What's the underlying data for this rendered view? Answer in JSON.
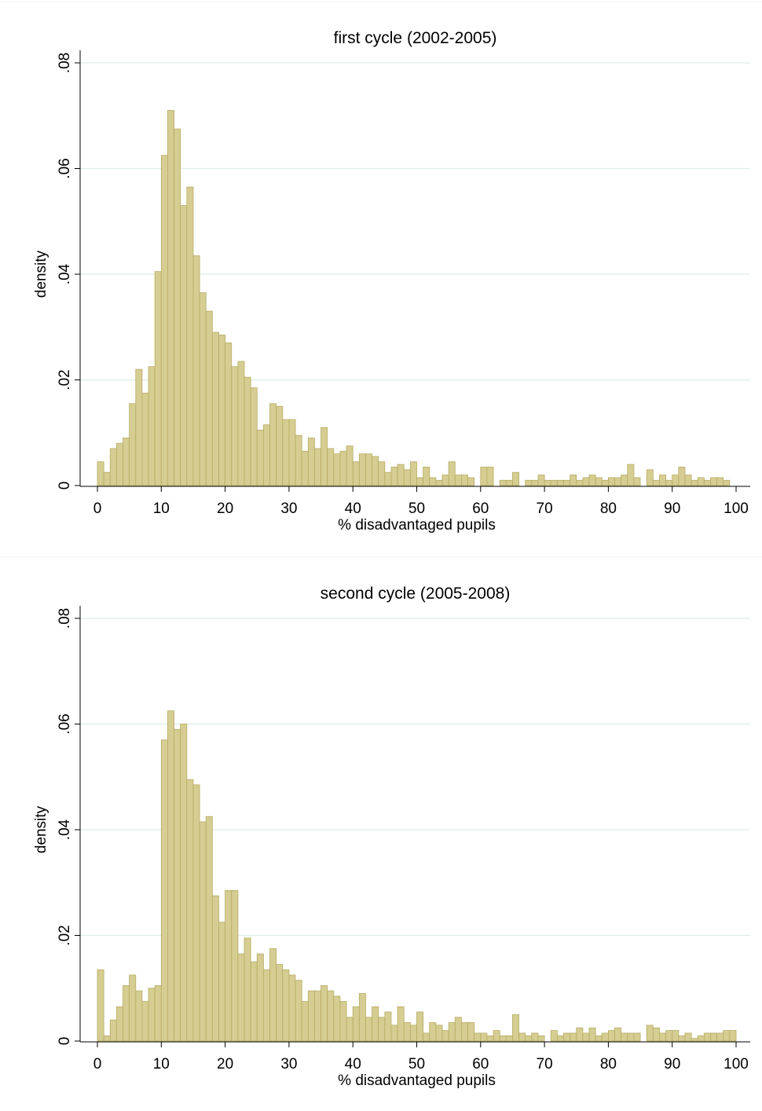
{
  "colors": {
    "bar_fill": "#d6cd92",
    "bar_stroke": "#b6ab62",
    "grid": "#e0ece9",
    "axis": "#000000",
    "background": "#ffffff"
  },
  "chart_data": [
    {
      "type": "bar",
      "title": "first cycle (2002-2005)",
      "xlabel": "% disadvantaged pupils",
      "ylabel": "density",
      "xlim": [
        0,
        100
      ],
      "ylim": [
        0,
        0.08
      ],
      "xticks": [
        0,
        10,
        20,
        30,
        40,
        50,
        60,
        70,
        80,
        90,
        100
      ],
      "xtick_labels": [
        "0",
        "10",
        "20",
        "30",
        "40",
        "50",
        "60",
        "70",
        "80",
        "90",
        "100"
      ],
      "yticks": [
        0,
        0.02,
        0.04,
        0.06,
        0.08
      ],
      "ytick_labels": [
        "0",
        ".02",
        ".04",
        ".06",
        ".08"
      ],
      "grid": true,
      "bin_width": 1,
      "bin_starts": [
        0,
        1,
        2,
        3,
        4,
        5,
        6,
        7,
        8,
        9,
        10,
        11,
        12,
        13,
        14,
        15,
        16,
        17,
        18,
        19,
        20,
        21,
        22,
        23,
        24,
        25,
        26,
        27,
        28,
        29,
        30,
        31,
        32,
        33,
        34,
        35,
        36,
        37,
        38,
        39,
        40,
        41,
        42,
        43,
        44,
        45,
        46,
        47,
        48,
        49,
        50,
        51,
        52,
        53,
        54,
        55,
        56,
        57,
        58,
        59,
        60,
        61,
        62,
        63,
        64,
        65,
        66,
        67,
        68,
        69,
        70,
        71,
        72,
        73,
        74,
        75,
        76,
        77,
        78,
        79,
        80,
        81,
        82,
        83,
        84,
        85,
        86,
        87,
        88,
        89,
        90,
        91,
        92,
        93,
        94,
        95,
        96,
        97,
        98,
        99
      ],
      "values": [
        0.0045,
        0.0025,
        0.007,
        0.008,
        0.009,
        0.0155,
        0.022,
        0.0175,
        0.0225,
        0.0405,
        0.0625,
        0.071,
        0.0675,
        0.053,
        0.0565,
        0.0435,
        0.0365,
        0.033,
        0.029,
        0.0285,
        0.027,
        0.0225,
        0.0235,
        0.0205,
        0.0185,
        0.0105,
        0.0115,
        0.0155,
        0.015,
        0.0125,
        0.0125,
        0.0095,
        0.0065,
        0.009,
        0.007,
        0.011,
        0.007,
        0.006,
        0.0065,
        0.0075,
        0.0045,
        0.006,
        0.006,
        0.0055,
        0.0045,
        0.0025,
        0.0035,
        0.004,
        0.003,
        0.0045,
        0.0015,
        0.0035,
        0.0015,
        0.001,
        0.002,
        0.0045,
        0.002,
        0.002,
        0.0015,
        0.0,
        0.0035,
        0.0035,
        0.0,
        0.001,
        0.001,
        0.0025,
        0.0,
        0.001,
        0.001,
        0.002,
        0.001,
        0.001,
        0.001,
        0.001,
        0.002,
        0.001,
        0.0015,
        0.002,
        0.0015,
        0.001,
        0.0015,
        0.0015,
        0.002,
        0.004,
        0.0015,
        0.0,
        0.003,
        0.001,
        0.002,
        0.001,
        0.002,
        0.0035,
        0.002,
        0.001,
        0.0015,
        0.001,
        0.0015,
        0.0015,
        0.001,
        0.0
      ]
    },
    {
      "type": "bar",
      "title": "second cycle (2005-2008)",
      "xlabel": "% disadvantaged pupils",
      "ylabel": "density",
      "xlim": [
        0,
        100
      ],
      "ylim": [
        0,
        0.08
      ],
      "xticks": [
        0,
        10,
        20,
        30,
        40,
        50,
        60,
        70,
        80,
        90,
        100
      ],
      "xtick_labels": [
        "0",
        "10",
        "20",
        "30",
        "40",
        "50",
        "60",
        "70",
        "80",
        "90",
        "100"
      ],
      "yticks": [
        0,
        0.02,
        0.04,
        0.06,
        0.08
      ],
      "ytick_labels": [
        "0",
        ".02",
        ".04",
        ".06",
        ".08"
      ],
      "grid": true,
      "bin_width": 1,
      "bin_starts": [
        0,
        1,
        2,
        3,
        4,
        5,
        6,
        7,
        8,
        9,
        10,
        11,
        12,
        13,
        14,
        15,
        16,
        17,
        18,
        19,
        20,
        21,
        22,
        23,
        24,
        25,
        26,
        27,
        28,
        29,
        30,
        31,
        32,
        33,
        34,
        35,
        36,
        37,
        38,
        39,
        40,
        41,
        42,
        43,
        44,
        45,
        46,
        47,
        48,
        49,
        50,
        51,
        52,
        53,
        54,
        55,
        56,
        57,
        58,
        59,
        60,
        61,
        62,
        63,
        64,
        65,
        66,
        67,
        68,
        69,
        70,
        71,
        72,
        73,
        74,
        75,
        76,
        77,
        78,
        79,
        80,
        81,
        82,
        83,
        84,
        85,
        86,
        87,
        88,
        89,
        90,
        91,
        92,
        93,
        94,
        95,
        96,
        97,
        98,
        99
      ],
      "values": [
        0.0135,
        0.001,
        0.004,
        0.0065,
        0.0105,
        0.0125,
        0.0095,
        0.0075,
        0.01,
        0.0105,
        0.057,
        0.0625,
        0.059,
        0.06,
        0.0495,
        0.0485,
        0.0415,
        0.0425,
        0.0275,
        0.0225,
        0.0285,
        0.0285,
        0.0165,
        0.0195,
        0.015,
        0.0165,
        0.0135,
        0.0175,
        0.0145,
        0.0135,
        0.0125,
        0.0115,
        0.0075,
        0.0095,
        0.0095,
        0.0105,
        0.0095,
        0.0085,
        0.0075,
        0.0045,
        0.0065,
        0.009,
        0.0045,
        0.0065,
        0.0045,
        0.0055,
        0.003,
        0.0065,
        0.0035,
        0.003,
        0.0055,
        0.0015,
        0.0035,
        0.003,
        0.002,
        0.0035,
        0.0045,
        0.0035,
        0.0035,
        0.0015,
        0.0015,
        0.001,
        0.002,
        0.001,
        0.001,
        0.005,
        0.0015,
        0.001,
        0.0015,
        0.001,
        0.0,
        0.002,
        0.001,
        0.0015,
        0.0015,
        0.0025,
        0.0015,
        0.0025,
        0.001,
        0.0015,
        0.002,
        0.0025,
        0.0015,
        0.0015,
        0.0015,
        0.0,
        0.003,
        0.0025,
        0.0015,
        0.002,
        0.002,
        0.001,
        0.0015,
        0.0005,
        0.001,
        0.0015,
        0.0015,
        0.0015,
        0.002,
        0.002
      ]
    }
  ]
}
